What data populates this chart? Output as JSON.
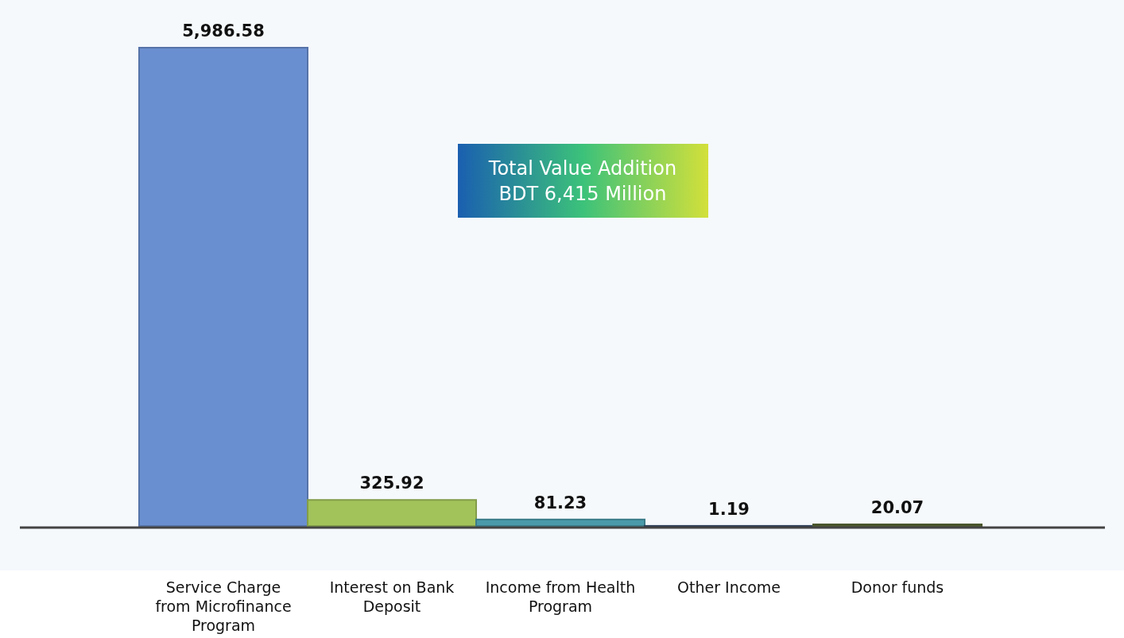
{
  "chart_data": {
    "type": "bar",
    "categories": [
      "Service Charge from Microfinance Program",
      "Interest on Bank Deposit",
      "Income from Health Program",
      "Other Income",
      "Donor funds"
    ],
    "values": [
      5986.58,
      325.92,
      81.23,
      1.19,
      20.07
    ],
    "value_labels": [
      "5,986.58",
      "325.92",
      "81.23",
      "1.19",
      "20.07"
    ],
    "colors": [
      "#6a8fd0",
      "#a2c35a",
      "#4a9aaa",
      "#34496b",
      "#5a6b35"
    ],
    "annotations": [
      "Total Value Addition",
      "BDT 6,415 Million"
    ]
  }
}
